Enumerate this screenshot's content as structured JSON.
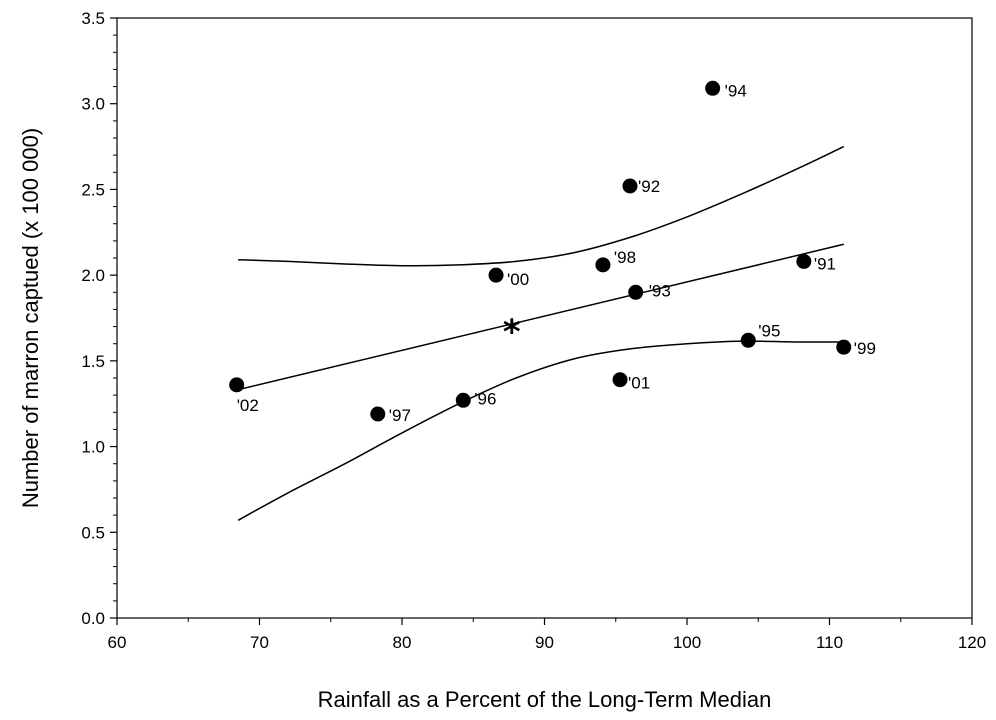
{
  "chart_data": {
    "type": "scatter",
    "xlabel": "Rainfall as a Percent of the Long-Term Median",
    "ylabel": "Number of marron captued (x 100 000)",
    "xlim": [
      60,
      120
    ],
    "ylim": [
      0,
      3.5
    ],
    "x_ticks": [
      "60",
      "70",
      "80",
      "90",
      "100",
      "110",
      "120"
    ],
    "y_ticks": [
      "0.0",
      "0.5",
      "1.0",
      "1.5",
      "2.0",
      "2.5",
      "3.0",
      "3.5"
    ],
    "grid": false,
    "points": [
      {
        "x": 68.4,
        "y": 1.36,
        "label": "'02"
      },
      {
        "x": 78.3,
        "y": 1.19,
        "label": "'97"
      },
      {
        "x": 84.3,
        "y": 1.27,
        "label": "'96"
      },
      {
        "x": 86.6,
        "y": 2.0,
        "label": "'00"
      },
      {
        "x": 94.1,
        "y": 2.06,
        "label": "'98"
      },
      {
        "x": 95.3,
        "y": 1.39,
        "label": "'01"
      },
      {
        "x": 96.0,
        "y": 2.52,
        "label": "'92"
      },
      {
        "x": 96.4,
        "y": 1.9,
        "label": "'93"
      },
      {
        "x": 101.8,
        "y": 3.09,
        "label": "'94"
      },
      {
        "x": 104.3,
        "y": 1.62,
        "label": "'95"
      },
      {
        "x": 108.2,
        "y": 2.08,
        "label": "'91"
      },
      {
        "x": 111.0,
        "y": 1.58,
        "label": "'99"
      }
    ],
    "regression_line": {
      "x": [
        68.4,
        111.0
      ],
      "y": [
        1.33,
        2.18
      ]
    },
    "upper_confidence_band": {
      "x": [
        68.5,
        72,
        76,
        80,
        84,
        88,
        92,
        96,
        100,
        104,
        108,
        111
      ],
      "y": [
        2.09,
        2.08,
        2.065,
        2.055,
        2.06,
        2.08,
        2.13,
        2.22,
        2.34,
        2.48,
        2.63,
        2.75
      ]
    },
    "lower_confidence_band": {
      "x": [
        68.5,
        72,
        76,
        80,
        84,
        88,
        92,
        96,
        100,
        104,
        108,
        111
      ],
      "y": [
        0.57,
        0.73,
        0.9,
        1.08,
        1.25,
        1.4,
        1.51,
        1.57,
        1.6,
        1.615,
        1.61,
        1.61
      ]
    },
    "asterisk": {
      "x": 87.7,
      "y": 1.7,
      "symbol": "*"
    }
  }
}
